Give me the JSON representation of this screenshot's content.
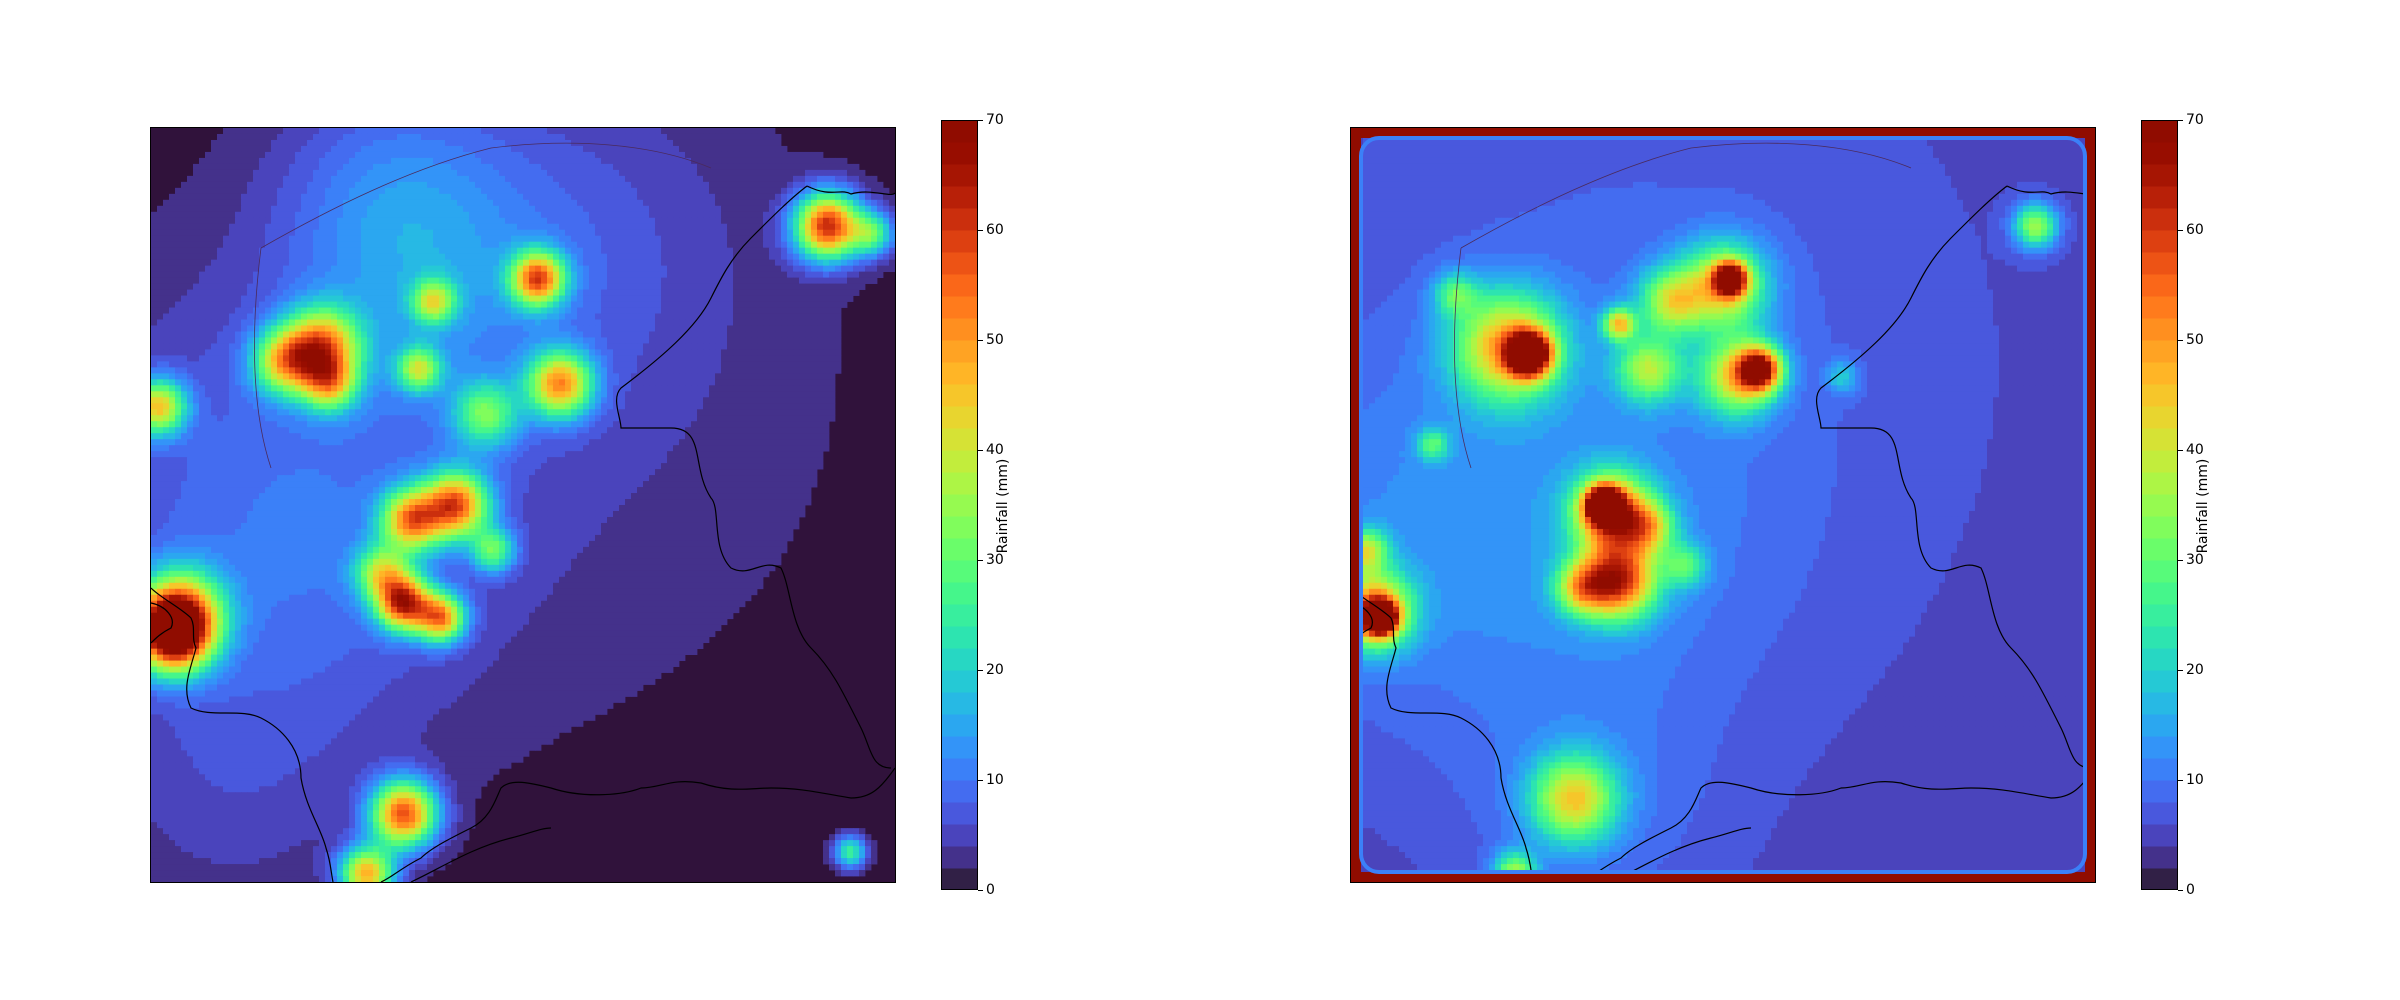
{
  "chart_data": [
    {
      "type": "heatmap",
      "title": "",
      "colormap": "turbo",
      "background_value": 0,
      "colorbar": {
        "label": "Rainfall (mm)",
        "range": [
          0,
          70
        ],
        "ticks": [
          "0",
          "10",
          "20",
          "30",
          "40",
          "50",
          "60",
          "70"
        ],
        "levels": 35
      },
      "blobs": [
        {
          "cx": 0.56,
          "cy": 0.15,
          "r": 0.16,
          "peak": 4
        },
        {
          "cx": 0.5,
          "cy": 0.36,
          "r": 0.34,
          "peak": 4
        },
        {
          "cx": 0.1,
          "cy": 0.48,
          "r": 0.2,
          "peak": 5
        },
        {
          "cx": 0.22,
          "cy": 0.6,
          "r": 0.16,
          "peak": 4
        },
        {
          "cx": 0.1,
          "cy": 0.88,
          "r": 0.14,
          "peak": 4
        },
        {
          "cx": 0.36,
          "cy": 0.2,
          "r": 0.12,
          "peak": 7
        },
        {
          "cx": 0.32,
          "cy": 0.08,
          "r": 0.1,
          "peak": 6
        },
        {
          "cx": 0.23,
          "cy": 0.29,
          "r": 0.035,
          "peak": 45
        },
        {
          "cx": 0.18,
          "cy": 0.31,
          "r": 0.03,
          "peak": 35
        },
        {
          "cx": 0.24,
          "cy": 0.34,
          "r": 0.025,
          "peak": 30
        },
        {
          "cx": 0.01,
          "cy": 0.37,
          "r": 0.025,
          "peak": 40
        },
        {
          "cx": 0.52,
          "cy": 0.2,
          "r": 0.025,
          "peak": 50
        },
        {
          "cx": 0.38,
          "cy": 0.23,
          "r": 0.02,
          "peak": 30
        },
        {
          "cx": 0.55,
          "cy": 0.34,
          "r": 0.03,
          "peak": 45
        },
        {
          "cx": 0.36,
          "cy": 0.32,
          "r": 0.02,
          "peak": 30
        },
        {
          "cx": 0.45,
          "cy": 0.38,
          "r": 0.03,
          "peak": 25
        },
        {
          "cx": 0.35,
          "cy": 0.52,
          "r": 0.028,
          "peak": 45
        },
        {
          "cx": 0.41,
          "cy": 0.5,
          "r": 0.03,
          "peak": 50
        },
        {
          "cx": 0.31,
          "cy": 0.59,
          "r": 0.025,
          "peak": 30
        },
        {
          "cx": 0.34,
          "cy": 0.63,
          "r": 0.025,
          "peak": 55
        },
        {
          "cx": 0.39,
          "cy": 0.65,
          "r": 0.022,
          "peak": 45
        },
        {
          "cx": 0.46,
          "cy": 0.56,
          "r": 0.02,
          "peak": 25
        },
        {
          "cx": 0.04,
          "cy": 0.64,
          "r": 0.04,
          "peak": 35
        },
        {
          "cx": 0.03,
          "cy": 0.67,
          "r": 0.035,
          "peak": 65
        },
        {
          "cx": 0.91,
          "cy": 0.13,
          "r": 0.03,
          "peak": 60
        },
        {
          "cx": 0.97,
          "cy": 0.14,
          "r": 0.02,
          "peak": 25
        },
        {
          "cx": 0.34,
          "cy": 0.91,
          "r": 0.03,
          "peak": 55
        },
        {
          "cx": 0.29,
          "cy": 0.99,
          "r": 0.025,
          "peak": 45
        },
        {
          "cx": 0.94,
          "cy": 0.96,
          "r": 0.015,
          "peak": 25
        }
      ]
    },
    {
      "type": "heatmap",
      "title": "",
      "colormap": "turbo",
      "background_value": 5,
      "edge_border_value": 70,
      "colorbar": {
        "label": "Rainfall (mm)",
        "range": [
          0,
          70
        ],
        "ticks": [
          "0",
          "10",
          "20",
          "30",
          "40",
          "50",
          "60",
          "70"
        ],
        "levels": 35
      },
      "blobs": [
        {
          "cx": 0.05,
          "cy": 0.55,
          "r": 0.18,
          "peak": 5
        },
        {
          "cx": 0.4,
          "cy": 0.3,
          "r": 0.28,
          "peak": 4
        },
        {
          "cx": 0.34,
          "cy": 0.58,
          "r": 0.18,
          "peak": 4
        },
        {
          "cx": 0.32,
          "cy": 0.9,
          "r": 0.12,
          "peak": 4
        },
        {
          "cx": 0.21,
          "cy": 0.29,
          "r": 0.05,
          "peak": 40
        },
        {
          "cx": 0.24,
          "cy": 0.3,
          "r": 0.02,
          "peak": 65
        },
        {
          "cx": 0.14,
          "cy": 0.22,
          "r": 0.02,
          "peak": 18
        },
        {
          "cx": 0.36,
          "cy": 0.26,
          "r": 0.015,
          "peak": 35
        },
        {
          "cx": 0.5,
          "cy": 0.21,
          "r": 0.04,
          "peak": 35
        },
        {
          "cx": 0.51,
          "cy": 0.2,
          "r": 0.015,
          "peak": 55
        },
        {
          "cx": 0.43,
          "cy": 0.23,
          "r": 0.03,
          "peak": 28
        },
        {
          "cx": 0.4,
          "cy": 0.32,
          "r": 0.03,
          "peak": 28
        },
        {
          "cx": 0.52,
          "cy": 0.33,
          "r": 0.035,
          "peak": 35
        },
        {
          "cx": 0.55,
          "cy": 0.32,
          "r": 0.02,
          "peak": 50
        },
        {
          "cx": 0.35,
          "cy": 0.51,
          "r": 0.035,
          "peak": 50
        },
        {
          "cx": 0.34,
          "cy": 0.5,
          "r": 0.015,
          "peak": 70
        },
        {
          "cx": 0.4,
          "cy": 0.53,
          "r": 0.025,
          "peak": 25
        },
        {
          "cx": 0.36,
          "cy": 0.6,
          "r": 0.035,
          "peak": 50
        },
        {
          "cx": 0.31,
          "cy": 0.61,
          "r": 0.025,
          "peak": 28
        },
        {
          "cx": 0.45,
          "cy": 0.58,
          "r": 0.02,
          "peak": 18
        },
        {
          "cx": 0.03,
          "cy": 0.64,
          "r": 0.035,
          "peak": 45
        },
        {
          "cx": 0.04,
          "cy": 0.65,
          "r": 0.015,
          "peak": 65
        },
        {
          "cx": 0.02,
          "cy": 0.56,
          "r": 0.02,
          "peak": 28
        },
        {
          "cx": 0.92,
          "cy": 0.13,
          "r": 0.02,
          "peak": 30
        },
        {
          "cx": 0.3,
          "cy": 0.89,
          "r": 0.04,
          "peak": 35
        },
        {
          "cx": 0.22,
          "cy": 0.99,
          "r": 0.02,
          "peak": 30
        },
        {
          "cx": 0.11,
          "cy": 0.42,
          "r": 0.015,
          "peak": 18
        },
        {
          "cx": 0.66,
          "cy": 0.33,
          "r": 0.015,
          "peak": 12
        }
      ]
    }
  ]
}
